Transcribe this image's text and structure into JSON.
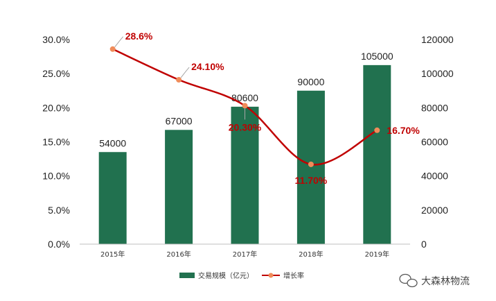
{
  "chart_data": {
    "type": "bar",
    "categories": [
      "2015年",
      "2016年",
      "2017年",
      "2018年",
      "2019年"
    ],
    "series": [
      {
        "name": "交易规模（亿元）",
        "type": "bar",
        "axis": "right",
        "values": [
          54000,
          67000,
          80600,
          90000,
          105000
        ],
        "labels": [
          "54000",
          "67000",
          "80600",
          "90000",
          "105000"
        ],
        "color": "#21714f"
      },
      {
        "name": "增长率",
        "type": "line",
        "axis": "left",
        "values": [
          28.6,
          24.1,
          20.3,
          11.7,
          16.7
        ],
        "labels": [
          "28.6%",
          "24.10%",
          "20.30%",
          "11.70%",
          "16.70%"
        ],
        "color": "#c00000",
        "marker_color": "#f08c5a"
      }
    ],
    "y_left": {
      "ylim": [
        0,
        30
      ],
      "ticks": [
        "0.0%",
        "5.0%",
        "10.0%",
        "15.0%",
        "20.0%",
        "25.0%",
        "30.0%"
      ]
    },
    "y_right": {
      "ylim": [
        0,
        120000
      ],
      "ticks": [
        "0",
        "20000",
        "40000",
        "60000",
        "80000",
        "100000",
        "120000"
      ]
    },
    "grid": false,
    "legend_position": "bottom"
  },
  "watermark": {
    "text": "大森林物流"
  }
}
